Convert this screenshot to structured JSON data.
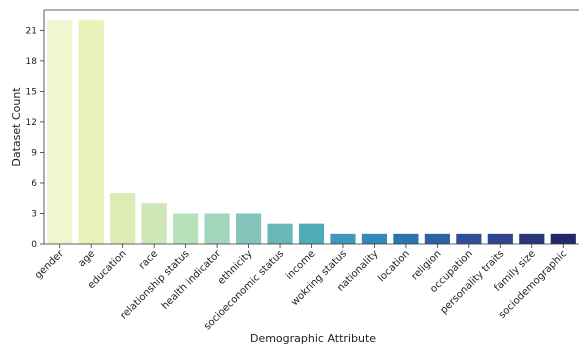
{
  "chart_data": {
    "type": "bar",
    "title": "",
    "xlabel": "Demographic Attribute",
    "ylabel": "Dataset Count",
    "ylim": [
      0,
      23
    ],
    "yticks": [
      0,
      3,
      6,
      9,
      12,
      15,
      18,
      21
    ],
    "grid": false,
    "legend": "none",
    "categories": [
      "gender",
      "age",
      "education",
      "race",
      "relationship status",
      "health indicator",
      "ethnicity",
      "socioeconomic status",
      "income",
      "wokring status",
      "nationality",
      "location",
      "religion",
      "occupation",
      "personality traits",
      "family size",
      "sociodemographic"
    ],
    "values": [
      22,
      22,
      5,
      4,
      3,
      3,
      3,
      2,
      2,
      1,
      1,
      1,
      1,
      1,
      1,
      1,
      1
    ],
    "colors": [
      "#f1f6ce",
      "#e8f1b8",
      "#dcecb4",
      "#cde7b6",
      "#b7e1b9",
      "#a1d6bd",
      "#85c4ba",
      "#68b8b5",
      "#50aab8",
      "#3f99bc",
      "#3588b7",
      "#2c74ad",
      "#2e60a4",
      "#30519a",
      "#31448e",
      "#2b357b",
      "#22296b"
    ]
  }
}
